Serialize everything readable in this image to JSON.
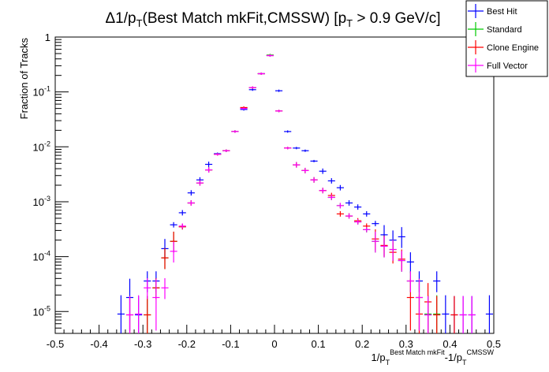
{
  "chart_data": {
    "type": "scatter",
    "title": "Δ1/pT(Best Match mkFit,CMSSW) [pT > 0.9 GeV/c]",
    "title_parts": {
      "prefix": "Δ1/p",
      "sub1": "T",
      "middle": "(Best Match mkFit,CMSSW) [p",
      "sub2": "T",
      "suffix": " > 0.9 GeV/c]"
    },
    "ylabel": "Fraction of Tracks",
    "xlabel_parts": {
      "a": "1/p",
      "a_sub": "T",
      "a_sup": "Best Match mkFit",
      "b": "-1/p",
      "b_sub": "T",
      "b_sup": "CMSSW"
    },
    "x_scale": "linear",
    "y_scale": "log",
    "xlim": [
      -0.5,
      0.5
    ],
    "ylim": [
      4e-06,
      1
    ],
    "x_ticks": [
      {
        "v": -0.5,
        "label": "-0.5"
      },
      {
        "v": -0.4,
        "label": "-0.4"
      },
      {
        "v": -0.3,
        "label": "-0.3"
      },
      {
        "v": -0.2,
        "label": "-0.2"
      },
      {
        "v": -0.1,
        "label": "-0.1"
      },
      {
        "v": 0,
        "label": "0"
      },
      {
        "v": 0.1,
        "label": "0.1"
      },
      {
        "v": 0.2,
        "label": "0.2"
      },
      {
        "v": 0.3,
        "label": "0.3"
      },
      {
        "v": 0.4,
        "label": "0.4"
      },
      {
        "v": 0.5,
        "label": "0.5"
      }
    ],
    "y_ticks": [
      {
        "v": 1e-05,
        "base": "10",
        "exp": "-5"
      },
      {
        "v": 0.0001,
        "base": "10",
        "exp": "-4"
      },
      {
        "v": 0.001,
        "base": "10",
        "exp": "-3"
      },
      {
        "v": 0.01,
        "base": "10",
        "exp": "-2"
      },
      {
        "v": 0.1,
        "base": "10",
        "exp": "-1"
      },
      {
        "v": 1,
        "base": "1",
        "exp": ""
      }
    ],
    "bin_width": 0.02,
    "grid": false,
    "legend_position": "top-right",
    "series": [
      {
        "name": "Best Hit",
        "color": "#0000ff",
        "x": [
          -0.35,
          -0.33,
          -0.31,
          -0.29,
          -0.27,
          -0.25,
          -0.23,
          -0.21,
          -0.19,
          -0.17,
          -0.15,
          -0.13,
          -0.11,
          -0.09,
          -0.07,
          -0.05,
          -0.03,
          -0.01,
          0.01,
          0.03,
          0.05,
          0.07,
          0.09,
          0.11,
          0.13,
          0.15,
          0.17,
          0.19,
          0.21,
          0.23,
          0.25,
          0.27,
          0.29,
          0.31,
          0.33,
          0.35,
          0.37,
          0.39,
          0.41,
          0.43,
          0.45,
          0.49
        ],
        "y": [
          9e-06,
          1.8e-05,
          8.7e-06,
          3.6e-05,
          3.6e-05,
          0.00014,
          0.00038,
          0.00063,
          0.00145,
          0.0025,
          0.0048,
          0.0075,
          0.0085,
          0.019,
          0.048,
          0.11,
          0.215,
          0.46,
          0.105,
          0.019,
          0.0095,
          0.0085,
          0.0055,
          0.0036,
          0.0024,
          0.0018,
          0.00095,
          0.0008,
          0.0006,
          0.0004,
          0.00025,
          0.0002,
          0.00023,
          8e-05,
          3.6e-05,
          8.7e-06,
          3.6e-05,
          9e-06,
          8.7e-06,
          8.7e-06,
          8.7e-06,
          9e-06
        ]
      },
      {
        "name": "Standard",
        "color": "#00cc00",
        "x": [
          -0.29,
          -0.27,
          -0.25,
          -0.23,
          -0.21,
          -0.19,
          -0.17,
          -0.15,
          -0.13,
          -0.11,
          -0.09,
          -0.07,
          -0.05,
          -0.03,
          -0.01,
          0.01,
          0.03,
          0.05,
          0.07,
          0.09,
          0.11,
          0.13,
          0.15,
          0.17,
          0.19,
          0.21,
          0.23,
          0.25,
          0.27,
          0.29,
          0.31,
          0.33,
          0.35,
          0.37
        ],
        "y": [
          8.7e-06,
          2.7e-05,
          9.5e-05,
          0.00019,
          0.00035,
          0.00095,
          0.0022,
          0.0038,
          0.0073,
          0.0085,
          0.019,
          0.051,
          0.12,
          0.215,
          0.47,
          0.045,
          0.0095,
          0.0047,
          0.0037,
          0.0025,
          0.0016,
          0.0012,
          0.00085,
          0.00055,
          0.00043,
          0.00031,
          0.00019,
          0.000155,
          0.000135,
          8.5e-05,
          3.6e-05,
          1.8e-05,
          9e-06,
          9e-06
        ]
      },
      {
        "name": "Clone Engine",
        "color": "#ff0000",
        "x": [
          -0.33,
          -0.29,
          -0.27,
          -0.25,
          -0.23,
          -0.21,
          -0.19,
          -0.17,
          -0.15,
          -0.13,
          -0.11,
          -0.09,
          -0.07,
          -0.05,
          -0.03,
          -0.01,
          0.01,
          0.03,
          0.05,
          0.07,
          0.09,
          0.11,
          0.13,
          0.15,
          0.17,
          0.19,
          0.21,
          0.23,
          0.25,
          0.27,
          0.29,
          0.31,
          0.33,
          0.35,
          0.37,
          0.41
        ],
        "y": [
          8.7e-06,
          8.7e-06,
          2.7e-05,
          9.5e-05,
          0.00019,
          0.00035,
          0.00095,
          0.0022,
          0.0038,
          0.0073,
          0.0085,
          0.019,
          0.052,
          0.12,
          0.215,
          0.46,
          0.045,
          0.0095,
          0.0047,
          0.0037,
          0.0025,
          0.0016,
          0.0013,
          0.0006,
          0.00055,
          0.00045,
          0.00036,
          0.00021,
          0.00016,
          0.00012,
          9e-05,
          1.8e-05,
          9e-06,
          1.5e-05,
          8.7e-06,
          8.7e-06
        ]
      },
      {
        "name": "Full Vector",
        "color": "#ff00ff",
        "x": [
          -0.33,
          -0.31,
          -0.29,
          -0.27,
          -0.25,
          -0.23,
          -0.21,
          -0.19,
          -0.17,
          -0.15,
          -0.13,
          -0.11,
          -0.09,
          -0.07,
          -0.05,
          -0.03,
          -0.01,
          0.01,
          0.03,
          0.05,
          0.07,
          0.09,
          0.11,
          0.13,
          0.15,
          0.17,
          0.19,
          0.21,
          0.23,
          0.25,
          0.27,
          0.29,
          0.31,
          0.33,
          0.35,
          0.43,
          0.45
        ],
        "y": [
          8.7e-06,
          9e-06,
          2.7e-05,
          1.8e-05,
          2.7e-05,
          0.000125,
          0.00036,
          0.00095,
          0.0022,
          0.0038,
          0.0073,
          0.0085,
          0.019,
          0.05,
          0.12,
          0.215,
          0.46,
          0.045,
          0.0095,
          0.0047,
          0.0037,
          0.0025,
          0.0016,
          0.0012,
          0.00085,
          0.00055,
          0.00043,
          0.00031,
          0.00019,
          0.000155,
          0.000135,
          8.5e-05,
          3.6e-05,
          1.8e-05,
          8.7e-06,
          8.7e-06,
          8.7e-06
        ]
      }
    ]
  }
}
